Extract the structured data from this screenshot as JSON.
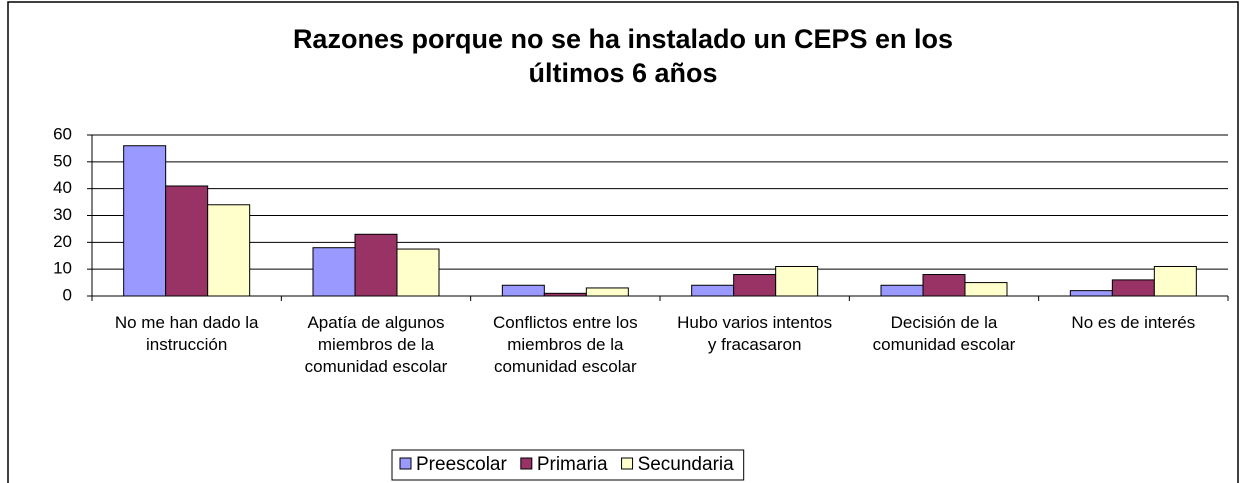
{
  "chart_data": {
    "type": "bar",
    "title": "Razones porque no se ha instalado un CEPS en los últimos 6 años",
    "categories": [
      "No me han dado la instrucción",
      "Apatía de algunos miembros de la comunidad escolar",
      "Conflictos entre los miembros de la comunidad escolar",
      "Hubo varios intentos y fracasaron",
      "Decisión de la comunidad escolar",
      "No es de interés"
    ],
    "series": [
      {
        "name": "Preescolar",
        "color": "#9999ff",
        "values": [
          56,
          18,
          4,
          4,
          4,
          2
        ]
      },
      {
        "name": "Primaria",
        "color": "#993366",
        "values": [
          41,
          23,
          1,
          8,
          8,
          6
        ]
      },
      {
        "name": "Secundaria",
        "color": "#ffffcc",
        "values": [
          34,
          17.5,
          3,
          11,
          5,
          11
        ]
      }
    ],
    "ylim": [
      0,
      60
    ],
    "yticks": [
      0,
      10,
      20,
      30,
      40,
      50,
      60
    ],
    "grid": true,
    "legend": "bottom"
  }
}
